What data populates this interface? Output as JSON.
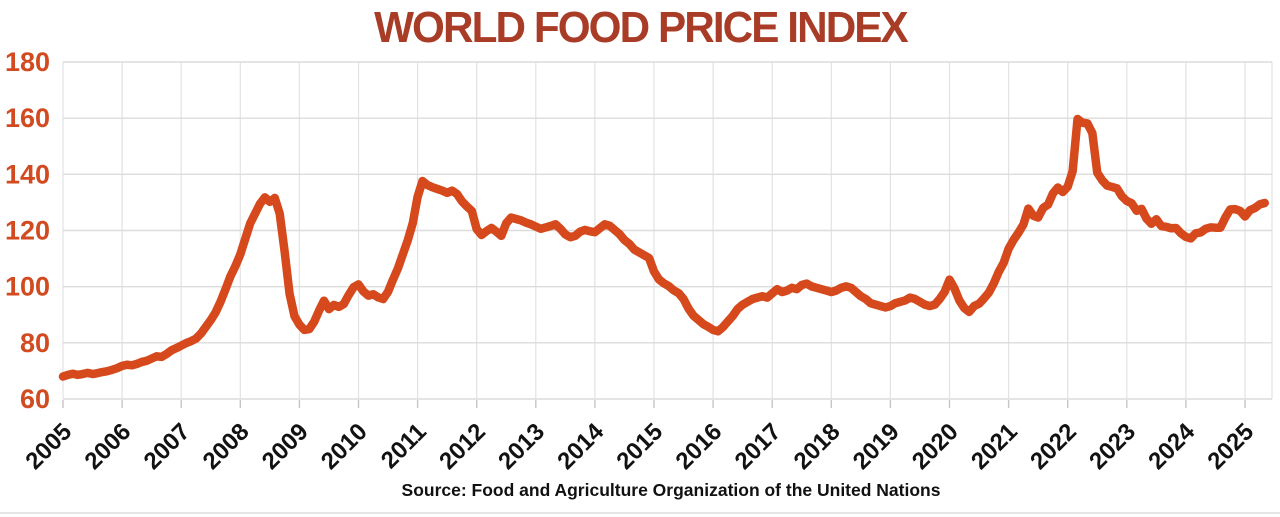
{
  "colors": {
    "title": "#A93C26",
    "line": "#D5491D",
    "axis_labels": "#D14A20",
    "x_labels": "#121212",
    "gridline_h": "#DCDCDC",
    "gridline_v": "#E2E2E2",
    "tick": "#C6C6C6",
    "background": "#FFFFFF"
  },
  "chart_data": {
    "type": "line",
    "title": "WORLD FOOD PRICE INDEX",
    "source_note": "Source: Food and Agriculture Organization of the United Nations",
    "xlabel": "",
    "ylabel": "",
    "ylim": [
      60,
      180
    ],
    "yticks": [
      60,
      80,
      100,
      120,
      140,
      160,
      180
    ],
    "grid": true,
    "legend": "none",
    "x_tick_labels": [
      "2005",
      "2006",
      "2007",
      "2008",
      "2009",
      "2010",
      "2011",
      "2012",
      "2013",
      "2014",
      "2015",
      "2016",
      "2017",
      "2018",
      "2019",
      "2020",
      "2021",
      "2022",
      "2023",
      "2024",
      "2025"
    ],
    "series": [
      {
        "name": "World Food Price Index",
        "frequency": "monthly",
        "start": "2005-01",
        "end": "2025-05",
        "values": [
          68.0,
          68.6,
          69.0,
          68.6,
          68.9,
          69.3,
          68.9,
          69.2,
          69.6,
          69.9,
          70.4,
          71.0,
          71.8,
          72.2,
          72.0,
          72.5,
          73.2,
          73.6,
          74.4,
          75.2,
          75.0,
          76.0,
          77.3,
          78.1,
          79.0,
          79.9,
          80.6,
          81.5,
          83.3,
          85.7,
          88.1,
          90.9,
          94.7,
          99.1,
          103.7,
          107.3,
          111.5,
          117.0,
          122.5,
          126.0,
          129.5,
          131.8,
          130.2,
          131.6,
          126.0,
          112.5,
          97.5,
          89.5,
          86.5,
          84.6,
          84.9,
          87.5,
          91.5,
          95.0,
          92.0,
          93.5,
          92.8,
          93.8,
          97.0,
          99.8,
          100.8,
          98.3,
          96.8,
          97.3,
          96.2,
          95.6,
          98.2,
          102.5,
          106.5,
          111.5,
          116.5,
          122.5,
          132.0,
          137.6,
          136.2,
          135.4,
          134.8,
          134.2,
          133.4,
          134.2,
          133.0,
          130.4,
          128.6,
          127.0,
          120.5,
          118.4,
          119.8,
          120.9,
          119.6,
          118.1,
          122.6,
          124.6,
          124.1,
          123.6,
          122.8,
          122.2,
          121.4,
          120.6,
          121.1,
          121.6,
          122.2,
          120.6,
          118.6,
          117.6,
          118.1,
          119.6,
          120.2,
          119.7,
          119.4,
          120.8,
          122.2,
          121.7,
          120.2,
          118.7,
          116.6,
          115.2,
          113.2,
          112.2,
          111.2,
          110.2,
          105.4,
          102.6,
          101.2,
          100.2,
          98.7,
          97.7,
          95.6,
          92.2,
          89.7,
          88.2,
          86.7,
          85.7,
          84.6,
          84.1,
          85.6,
          87.6,
          89.6,
          92.1,
          93.6,
          94.6,
          95.6,
          96.1,
          96.6,
          96.1,
          97.6,
          99.1,
          98.1,
          98.6,
          99.6,
          99.1,
          100.6,
          101.1,
          100.1,
          99.6,
          99.1,
          98.6,
          98.1,
          98.6,
          99.6,
          100.1,
          99.6,
          98.1,
          96.6,
          95.6,
          94.1,
          93.6,
          93.1,
          92.6,
          93.1,
          94.1,
          94.6,
          95.1,
          96.1,
          95.6,
          94.6,
          93.6,
          93.1,
          93.6,
          95.6,
          98.1,
          102.5,
          99.4,
          95.1,
          92.4,
          91.0,
          93.1,
          93.9,
          95.8,
          97.9,
          101.2,
          105.3,
          108.5,
          113.5,
          116.6,
          119.2,
          122.1,
          127.8,
          125.3,
          124.6,
          128.0,
          129.2,
          133.2,
          135.3,
          133.7,
          135.6,
          141.1,
          159.7,
          158.4,
          158.1,
          154.7,
          140.6,
          137.9,
          136.0,
          135.5,
          135.0,
          132.2,
          130.5,
          129.7,
          127.0,
          127.7,
          124.2,
          122.4,
          124.0,
          121.6,
          121.3,
          120.8,
          120.9,
          119.0,
          117.7,
          117.2,
          119.0,
          119.3,
          120.6,
          121.1,
          121.0,
          121.0,
          124.6,
          127.5,
          127.6,
          127.0,
          125.0,
          127.2,
          128.0,
          129.3,
          129.8
        ]
      }
    ]
  }
}
